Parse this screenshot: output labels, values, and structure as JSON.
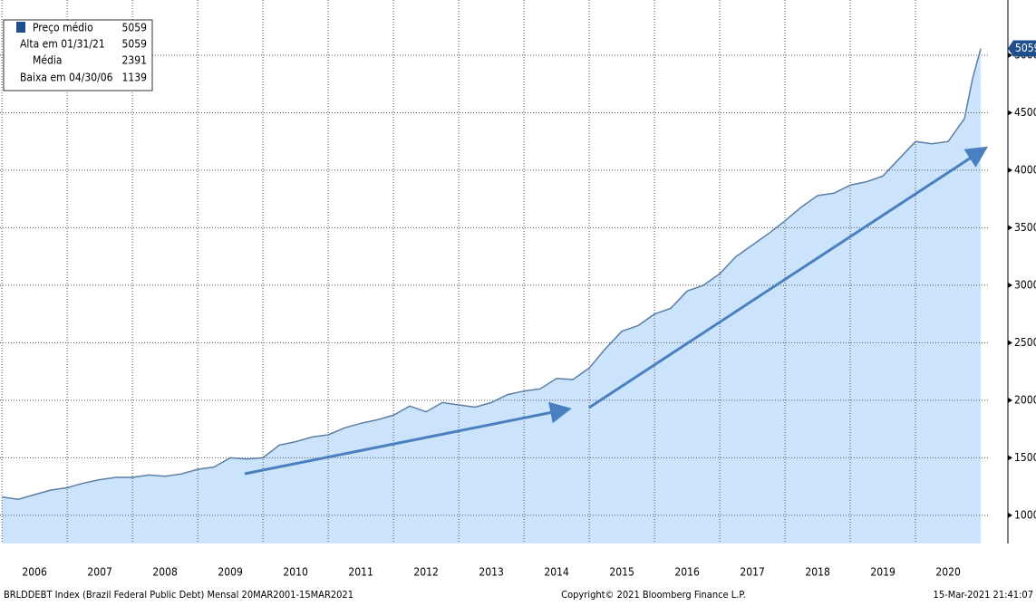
{
  "chart_data": {
    "type": "area",
    "x": [
      2006.0,
      2006.25,
      2006.5,
      2006.75,
      2007.0,
      2007.25,
      2007.5,
      2007.75,
      2008.0,
      2008.25,
      2008.5,
      2008.75,
      2009.0,
      2009.25,
      2009.5,
      2009.75,
      2010.0,
      2010.25,
      2010.5,
      2010.75,
      2011.0,
      2011.25,
      2011.5,
      2011.75,
      2012.0,
      2012.25,
      2012.5,
      2012.75,
      2013.0,
      2013.25,
      2013.5,
      2013.75,
      2014.0,
      2014.25,
      2014.5,
      2014.75,
      2015.0,
      2015.25,
      2015.5,
      2015.75,
      2016.0,
      2016.25,
      2016.5,
      2016.75,
      2017.0,
      2017.25,
      2017.5,
      2017.75,
      2018.0,
      2018.25,
      2018.5,
      2018.75,
      2019.0,
      2019.25,
      2019.5,
      2019.75,
      2020.0,
      2020.25,
      2020.5,
      2020.75,
      2020.875,
      2021.0
    ],
    "series": [
      {
        "name": "Preço médio",
        "color": "#5b7fa6",
        "fill": "#cce4fb",
        "values": [
          1160,
          1139,
          1180,
          1220,
          1240,
          1280,
          1310,
          1330,
          1330,
          1350,
          1340,
          1360,
          1400,
          1420,
          1500,
          1490,
          1500,
          1610,
          1640,
          1680,
          1700,
          1760,
          1800,
          1830,
          1870,
          1950,
          1900,
          1980,
          1960,
          1940,
          1980,
          2050,
          2080,
          2100,
          2190,
          2180,
          2280,
          2450,
          2600,
          2650,
          2750,
          2800,
          2950,
          3000,
          3100,
          3250,
          3350,
          3450,
          3560,
          3680,
          3780,
          3800,
          3870,
          3900,
          3950,
          4100,
          4250,
          4230,
          4250,
          4450,
          4800,
          5059
        ]
      }
    ],
    "xlim": [
      2005.97,
      2021.11
    ],
    "xticks": [
      {
        "value": 2006.5,
        "label": "2006"
      },
      {
        "value": 2007.5,
        "label": "2007"
      },
      {
        "value": 2008.5,
        "label": "2008"
      },
      {
        "value": 2009.5,
        "label": "2009"
      },
      {
        "value": 2010.5,
        "label": "2010"
      },
      {
        "value": 2011.5,
        "label": "2011"
      },
      {
        "value": 2012.5,
        "label": "2012"
      },
      {
        "value": 2013.5,
        "label": "2013"
      },
      {
        "value": 2014.5,
        "label": "2014"
      },
      {
        "value": 2015.5,
        "label": "2015"
      },
      {
        "value": 2016.5,
        "label": "2016"
      },
      {
        "value": 2017.5,
        "label": "2017"
      },
      {
        "value": 2018.5,
        "label": "2018"
      },
      {
        "value": 2019.5,
        "label": "2019"
      },
      {
        "value": 2020.5,
        "label": "2020"
      }
    ],
    "ylim": [
      755,
      5480
    ],
    "yticks": [
      1000,
      1500,
      2000,
      2500,
      3000,
      3500,
      4000,
      4500,
      5000
    ],
    "grid": true,
    "legend": [
      {
        "label": "Preço médio",
        "value": "5059"
      },
      {
        "label": "Alta em 01/31/21",
        "value": "5059"
      },
      {
        "label": "Média",
        "value": "2391"
      },
      {
        "label": "Baixa em 04/30/06",
        "value": "1139"
      }
    ],
    "footer": {
      "left": "BRLDDEBT Index (Brazil Federal Public Debt)  Mensal 20MAR2001-15MAR2021",
      "center": "Copyright© 2021 Bloomberg Finance L.P.",
      "right": "15-Mar-2021 21:41:07"
    }
  }
}
